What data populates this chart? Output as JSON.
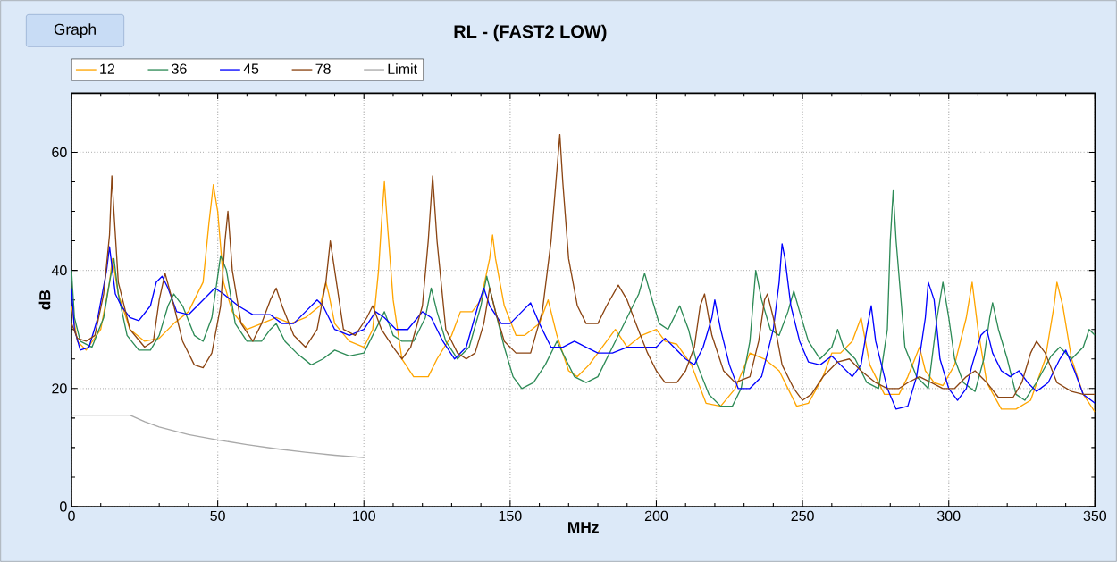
{
  "chart_data": {
    "type": "line",
    "title": "RL - (FAST2 LOW)",
    "xlabel": "MHz",
    "ylabel": "dB",
    "annotations": [
      "Graph"
    ],
    "xlim": [
      0,
      350
    ],
    "ylim": [
      0,
      70
    ],
    "xticks": [
      0,
      50,
      100,
      150,
      200,
      250,
      300,
      350
    ],
    "yticks": [
      0,
      20,
      40,
      60
    ],
    "grid": true,
    "legend": "top",
    "line_style": "solid",
    "series": [
      {
        "name": "12",
        "color": "#ffa500",
        "x": [
          0,
          2,
          5,
          10,
          13,
          14,
          16,
          20,
          25,
          30,
          35,
          40,
          45,
          47,
          48.5,
          50,
          52,
          55,
          60,
          65,
          70,
          75,
          80,
          85,
          87,
          88,
          90,
          95,
          100,
          103,
          105,
          106,
          107,
          108,
          110,
          113,
          117,
          122,
          125,
          130,
          133,
          137,
          140,
          143,
          144,
          145,
          148,
          152,
          155,
          160,
          163,
          166,
          170,
          173,
          177,
          183,
          186,
          190,
          195,
          200,
          203,
          207,
          212,
          217,
          222,
          227,
          232,
          237,
          242,
          248,
          252,
          257,
          260,
          263,
          267,
          270,
          273,
          278,
          283,
          286,
          290,
          292,
          295,
          298,
          302,
          306,
          308,
          310,
          313,
          318,
          323,
          328,
          333,
          336,
          337,
          339,
          342,
          346,
          350
        ],
        "values": [
          34,
          28,
          26.5,
          30,
          38,
          42,
          36,
          30,
          28,
          28.5,
          31,
          33,
          38,
          48,
          54.5,
          50,
          38,
          33,
          30,
          31,
          32,
          31,
          32,
          34,
          38,
          36,
          31,
          28,
          27,
          30,
          40,
          48,
          55,
          48,
          35,
          25,
          22,
          22,
          25,
          29,
          33,
          33,
          35,
          42,
          46,
          42,
          34,
          29,
          29,
          31,
          35,
          29,
          23,
          22,
          24,
          28,
          30,
          27,
          29,
          30,
          28,
          27.5,
          24,
          17.5,
          17,
          20,
          26,
          25,
          23,
          17,
          17.5,
          22,
          26,
          26,
          28,
          32,
          24,
          19,
          19,
          22,
          27,
          23,
          21,
          20.5,
          24,
          32,
          38,
          30,
          21,
          16.5,
          16.5,
          18,
          25,
          34,
          38,
          34,
          25,
          19,
          16
        ]
      },
      {
        "name": "36",
        "color": "#2e8b57",
        "x": [
          0,
          1,
          3,
          7,
          11,
          13,
          14.5,
          16,
          19,
          23,
          27,
          30,
          33,
          35,
          38,
          42,
          45,
          48,
          51,
          53,
          56,
          60,
          65,
          68,
          70,
          73,
          77,
          82,
          86,
          90,
          95,
          100,
          104,
          107,
          110,
          113,
          117,
          121,
          123,
          125,
          128,
          132,
          136,
          140,
          142,
          145,
          148,
          151,
          154,
          158,
          162,
          166,
          169,
          172,
          176,
          180,
          185,
          190,
          194,
          196,
          198,
          201,
          204,
          207,
          208,
          211,
          214,
          218,
          222,
          226,
          229,
          232,
          234,
          236,
          239,
          242,
          245,
          247,
          249,
          252,
          256,
          260,
          262,
          264,
          268,
          272,
          276,
          279,
          280,
          281,
          282,
          285,
          289,
          293,
          296,
          298,
          300,
          302,
          305,
          309,
          312,
          314,
          315,
          317,
          320,
          323,
          326,
          330,
          335,
          338,
          342,
          346,
          348,
          350
        ],
        "values": [
          40,
          32,
          28,
          27,
          32,
          38,
          42,
          36,
          29,
          26.5,
          26.5,
          29,
          34,
          36,
          34,
          29,
          28,
          32,
          42.5,
          40,
          31,
          28,
          28,
          30,
          31,
          28,
          26,
          24,
          25,
          26.5,
          25.5,
          26,
          30,
          33,
          29,
          28,
          28,
          32,
          37,
          33,
          28,
          25,
          27,
          34,
          39,
          33,
          27,
          22,
          20,
          21,
          24,
          28,
          25,
          22,
          21,
          22,
          27,
          32,
          36,
          39.5,
          36,
          31,
          30,
          33,
          34,
          30,
          24,
          19,
          17,
          17,
          20,
          28,
          40,
          35,
          30,
          29,
          33,
          36.5,
          33,
          28,
          25,
          27,
          30,
          27,
          25,
          21,
          20,
          30,
          45,
          53.5,
          45,
          27,
          22,
          20,
          32,
          38,
          32,
          25,
          21,
          19.5,
          25,
          32,
          34.5,
          30,
          25,
          19,
          18,
          21,
          25.5,
          27,
          25,
          27,
          30,
          29
        ]
      },
      {
        "name": "45",
        "color": "#0000ff",
        "x": [
          0,
          1,
          3,
          6,
          9,
          12,
          13,
          15,
          17,
          20,
          23,
          27,
          29,
          31,
          33,
          36,
          40,
          45,
          49,
          52,
          57,
          62,
          68,
          72,
          76,
          80,
          84,
          86,
          90,
          95,
          100,
          104,
          107,
          111,
          115,
          120,
          123,
          127,
          131,
          135,
          139,
          141,
          143,
          147,
          150,
          154,
          157,
          160,
          164,
          168,
          172,
          176,
          180,
          185,
          190,
          195,
          200,
          203,
          206,
          210,
          213,
          216,
          219,
          220,
          222,
          225,
          228,
          232,
          236,
          240,
          242,
          243,
          244,
          246,
          249,
          252,
          256,
          260,
          263,
          267,
          270,
          272,
          273.5,
          275,
          279,
          282,
          286,
          289,
          292,
          293,
          295,
          297,
          300,
          303,
          306,
          308,
          311,
          313,
          315,
          318,
          321,
          324,
          327,
          330,
          334,
          338,
          340,
          343,
          346,
          350
        ],
        "values": [
          37,
          30,
          26.5,
          27,
          32,
          40,
          44,
          36,
          34,
          32,
          31.5,
          34,
          38,
          39,
          37,
          33,
          32.5,
          35,
          37,
          36,
          34,
          32.5,
          32.5,
          31,
          31,
          33,
          35,
          34,
          30,
          29,
          30,
          33,
          32,
          30,
          30,
          33,
          32,
          28,
          25,
          27,
          34,
          37,
          34,
          31,
          31,
          33,
          34.5,
          31,
          27,
          27,
          28,
          27,
          26,
          26,
          27,
          27,
          27,
          28.5,
          27,
          25,
          24,
          27,
          32,
          35,
          30,
          24,
          20,
          20,
          22,
          30,
          38,
          44.5,
          42,
          34,
          28,
          24.5,
          24,
          25.5,
          24,
          22,
          24,
          30,
          34,
          28,
          20,
          16.5,
          17,
          22,
          32,
          38,
          35,
          25,
          20,
          18,
          20,
          24,
          29,
          30,
          26,
          23,
          22,
          23,
          21,
          19.5,
          21,
          25,
          26.5,
          23,
          19,
          17.5
        ]
      },
      {
        "name": "78",
        "color": "#8b4513",
        "x": [
          0,
          2,
          5,
          8,
          11,
          13,
          13.8,
          14.5,
          16,
          20,
          25,
          28,
          30,
          32,
          35,
          38,
          42,
          45,
          48,
          51,
          52.5,
          53.5,
          55,
          58,
          62,
          65,
          68,
          70,
          72,
          76,
          80,
          84,
          87,
          88.5,
          90,
          93,
          97,
          101,
          103,
          106,
          110,
          113,
          116,
          120,
          122,
          123.5,
          125,
          128,
          132,
          135,
          138,
          141,
          143,
          145,
          148,
          152,
          157,
          161,
          164,
          166,
          167,
          168,
          170,
          173,
          176,
          180,
          183,
          187,
          190,
          193,
          197,
          200,
          203,
          207,
          210,
          213,
          215,
          216.5,
          219,
          223,
          227,
          232,
          235,
          237,
          238,
          240,
          243,
          247,
          250,
          253,
          257,
          262,
          266,
          270,
          275,
          279,
          283,
          286,
          290,
          294,
          298,
          302,
          306,
          309,
          313,
          317,
          322,
          325,
          328,
          330,
          333,
          337,
          342,
          346,
          350
        ],
        "values": [
          31,
          28.5,
          28,
          29,
          36,
          46,
          56,
          50,
          38,
          30,
          27,
          28,
          35,
          39.5,
          34,
          28,
          24,
          23.5,
          26,
          34,
          45,
          50,
          40,
          31,
          28,
          31,
          35,
          37,
          34,
          29,
          27,
          30,
          38,
          45,
          40,
          30,
          29,
          32,
          34,
          30,
          27,
          25,
          27,
          34,
          45,
          56,
          45,
          30,
          26,
          25,
          26,
          31,
          37,
          33,
          28,
          26,
          26,
          33,
          45,
          57,
          63,
          55,
          42,
          34,
          31,
          31,
          34,
          37.5,
          35,
          31,
          26,
          23,
          21,
          21,
          23,
          27,
          34,
          36,
          29,
          23,
          21,
          22,
          28,
          35,
          36,
          32,
          24,
          20,
          18,
          19,
          22,
          24.5,
          25,
          23,
          21,
          20,
          20,
          21,
          22,
          21,
          20,
          20,
          22,
          23,
          21,
          18.5,
          18.5,
          21,
          26,
          28,
          26,
          21,
          19.5,
          19,
          19
        ]
      },
      {
        "name": "Limit",
        "color": "#a9a9a9",
        "x": [
          0,
          20,
          25,
          30,
          40,
          50,
          60,
          70,
          80,
          90,
          100
        ],
        "values": [
          15.5,
          15.5,
          14.4,
          13.5,
          12.2,
          11.3,
          10.5,
          9.8,
          9.2,
          8.7,
          8.3
        ]
      }
    ]
  }
}
